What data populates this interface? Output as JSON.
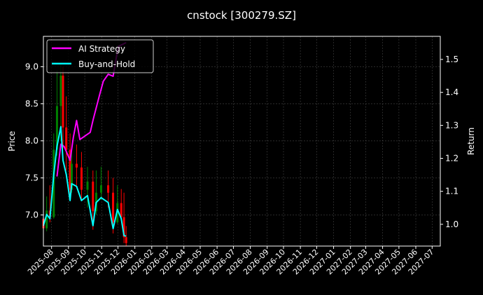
{
  "chart_data": {
    "type": "line",
    "title": "cnstock [300279.SZ]",
    "ylabel": "Price",
    "ylabel_right": "Return",
    "xlim": [
      "2025-07-17",
      "2027-07-16"
    ],
    "ylim": [
      6.58,
      9.41
    ],
    "ylim_right": [
      0.934,
      1.57
    ],
    "grid": true,
    "legend_position": "top-left",
    "x_ticks": [
      "2025-08",
      "2025-09",
      "2025-10",
      "2025-11",
      "2025-12",
      "2026-01",
      "2026-02",
      "2026-03",
      "2026-04",
      "2026-05",
      "2026-06",
      "2026-07",
      "2026-08",
      "2026-09",
      "2026-10",
      "2026-11",
      "2026-12",
      "2027-01",
      "2027-02",
      "2027-03",
      "2027-04",
      "2027-05",
      "2027-06",
      "2027-07"
    ],
    "y_ticks": [
      "7.0",
      "7.5",
      "8.0",
      "8.5",
      "9.0"
    ],
    "y_ticks_right": [
      "1.0",
      "1.1",
      "1.2",
      "1.3",
      "1.4",
      "1.5"
    ],
    "colors": {
      "background": "#000000",
      "ai": "#ff00ff",
      "bh": "#00ffff",
      "up": "#008000",
      "down": "#ff0000",
      "grid": "#444444"
    },
    "candles": {
      "dates": [
        "2025-07-17",
        "2025-07-23",
        "2025-07-29",
        "2025-08-05",
        "2025-08-11",
        "2025-08-18",
        "2025-08-22",
        "2025-08-28",
        "2025-09-04",
        "2025-09-07",
        "2025-09-16",
        "2025-09-25",
        "2025-10-06",
        "2025-10-16",
        "2025-10-22",
        "2025-10-31",
        "2025-11-13",
        "2025-11-22",
        "2025-11-30",
        "2025-12-07",
        "2025-12-12",
        "2025-12-16"
      ],
      "open": [
        6.95,
        6.82,
        7.06,
        6.97,
        7.88,
        8.47,
        8.88,
        8.18,
        7.88,
        7.34,
        7.69,
        7.64,
        7.34,
        7.45,
        7.05,
        7.3,
        7.4,
        7.3,
        6.9,
        7.16,
        6.97,
        6.7
      ],
      "high": [
        7.3,
        7.25,
        7.4,
        8.1,
        8.95,
        9.05,
        9.0,
        8.6,
        8.1,
        7.9,
        7.95,
        7.85,
        7.65,
        7.6,
        7.6,
        7.65,
        7.6,
        7.5,
        7.4,
        7.35,
        7.3,
        6.85
      ],
      "low": [
        6.8,
        6.78,
        6.9,
        6.95,
        7.8,
        8.0,
        7.9,
        7.6,
        7.25,
        7.3,
        7.4,
        7.2,
        7.1,
        6.8,
        7.0,
        7.2,
        7.1,
        6.75,
        6.88,
        6.95,
        6.62,
        6.58
      ],
      "close": [
        6.82,
        7.06,
        6.97,
        7.88,
        8.47,
        8.88,
        8.18,
        7.88,
        7.34,
        7.69,
        7.64,
        7.34,
        7.45,
        7.05,
        7.3,
        7.4,
        7.3,
        6.9,
        7.16,
        6.97,
        6.7,
        6.62
      ]
    },
    "series": [
      {
        "name": "AI Strategy",
        "axis": "right",
        "x": [
          "2025-08-11",
          "2025-08-18",
          "2025-08-24",
          "2025-09-04",
          "2025-09-10",
          "2025-09-16",
          "2025-09-22",
          "2025-10-11",
          "2025-10-16",
          "2025-10-28",
          "2025-11-04",
          "2025-11-13",
          "2025-11-22",
          "2025-11-28",
          "2025-12-02",
          "2025-12-16"
        ],
        "y": [
          1.145,
          1.243,
          1.236,
          1.194,
          1.264,
          1.315,
          1.257,
          1.279,
          1.315,
          1.391,
          1.434,
          1.455,
          1.449,
          1.506,
          1.54,
          1.551
        ]
      },
      {
        "name": "Buy-and-Hold",
        "axis": "right",
        "x": [
          "2025-07-17",
          "2025-07-23",
          "2025-07-29",
          "2025-08-05",
          "2025-08-11",
          "2025-08-18",
          "2025-08-22",
          "2025-08-28",
          "2025-09-04",
          "2025-09-07",
          "2025-09-16",
          "2025-09-25",
          "2025-10-06",
          "2025-10-16",
          "2025-10-22",
          "2025-10-31",
          "2025-11-13",
          "2025-11-22",
          "2025-11-30",
          "2025-12-07",
          "2025-12-12",
          "2025-12-16"
        ],
        "y": [
          0.996,
          1.03,
          1.017,
          1.151,
          1.236,
          1.296,
          1.194,
          1.151,
          1.072,
          1.123,
          1.115,
          1.072,
          1.087,
          0.996,
          1.066,
          1.081,
          1.066,
          0.987,
          1.045,
          1.017,
          0.966,
          0.964
        ]
      }
    ]
  }
}
